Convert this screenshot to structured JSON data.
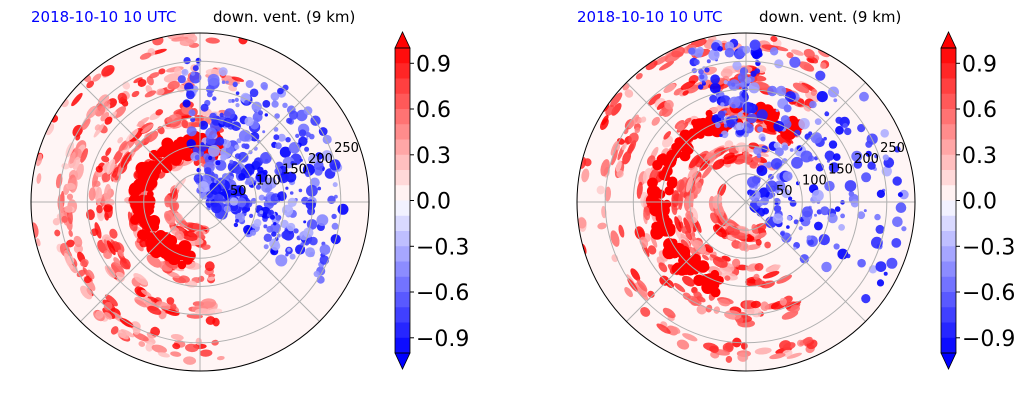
{
  "chart_data": [
    {
      "type": "heatmap",
      "projection": "polar",
      "title_left": "2018-10-10 10 UTC",
      "title_right": "down. vent. (9 km)",
      "radial_ticks": [
        "50",
        "100",
        "150",
        "200",
        "250"
      ],
      "radial_tick_values": [
        50,
        100,
        150,
        200,
        250
      ],
      "colorbar": {
        "min": -1.0,
        "max": 1.0,
        "step": 0.1,
        "ticks": [
          "0.9",
          "0.6",
          "0.3",
          "0.0",
          "−0.3",
          "−0.6",
          "−0.9"
        ],
        "tick_values": [
          0.9,
          0.6,
          0.3,
          0.0,
          -0.3,
          -0.6,
          -0.9
        ],
        "cmap": "bwr"
      },
      "colors": {
        "positive": "#ff0000",
        "negative": "#0000ff",
        "neutral": "#ffffff"
      },
      "grid": true
    },
    {
      "type": "heatmap",
      "projection": "polar",
      "title_left": "2018-10-10 10 UTC",
      "title_right": "down. vent. (9 km)",
      "radial_ticks": [
        "50",
        "100",
        "150",
        "200",
        "250"
      ],
      "radial_tick_values": [
        50,
        100,
        150,
        200,
        250
      ],
      "colorbar": {
        "min": -1.0,
        "max": 1.0,
        "step": 0.1,
        "ticks": [
          "0.9",
          "0.6",
          "0.3",
          "0.0",
          "−0.3",
          "−0.6",
          "−0.9"
        ],
        "tick_values": [
          0.9,
          0.6,
          0.3,
          0.0,
          -0.3,
          -0.6,
          -0.9
        ],
        "cmap": "bwr"
      },
      "colors": {
        "positive": "#ff0000",
        "negative": "#0000ff",
        "neutral": "#ffffff"
      },
      "grid": true
    }
  ]
}
